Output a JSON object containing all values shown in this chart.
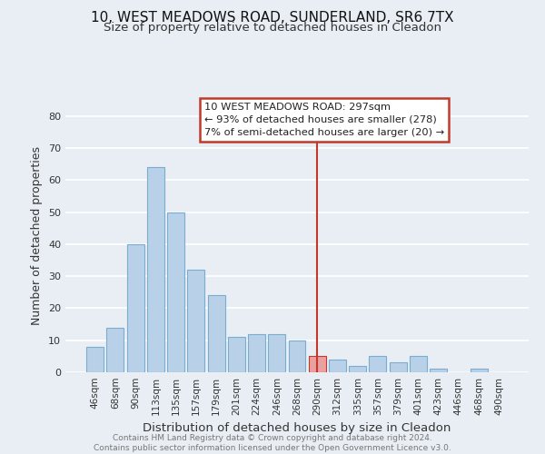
{
  "title": "10, WEST MEADOWS ROAD, SUNDERLAND, SR6 7TX",
  "subtitle": "Size of property relative to detached houses in Cleadon",
  "xlabel": "Distribution of detached houses by size in Cleadon",
  "ylabel": "Number of detached properties",
  "bar_labels": [
    "46sqm",
    "68sqm",
    "90sqm",
    "113sqm",
    "135sqm",
    "157sqm",
    "179sqm",
    "201sqm",
    "224sqm",
    "246sqm",
    "268sqm",
    "290sqm",
    "312sqm",
    "335sqm",
    "357sqm",
    "379sqm",
    "401sqm",
    "423sqm",
    "446sqm",
    "468sqm",
    "490sqm"
  ],
  "bar_values": [
    8,
    14,
    40,
    64,
    50,
    32,
    24,
    11,
    12,
    12,
    10,
    5,
    4,
    2,
    5,
    3,
    5,
    1,
    0,
    1,
    0
  ],
  "highlight_bar_index": 11,
  "bar_color": "#b8d0e8",
  "bar_edge_color": "#7aaed0",
  "highlight_bar_color": "#e8a0a0",
  "highlight_bar_edge_color": "#c0392b",
  "vline_color": "#c0392b",
  "annotation_text": "10 WEST MEADOWS ROAD: 297sqm\n← 93% of detached houses are smaller (278)\n7% of semi-detached houses are larger (20) →",
  "ylim": [
    0,
    85
  ],
  "yticks": [
    0,
    10,
    20,
    30,
    40,
    50,
    60,
    70,
    80
  ],
  "footer_text": "Contains HM Land Registry data © Crown copyright and database right 2024.\nContains public sector information licensed under the Open Government Licence v3.0.",
  "background_color": "#e8eef4",
  "grid_color": "#ffffff",
  "title_fontsize": 11,
  "subtitle_fontsize": 9.5,
  "tick_fontsize": 7.5,
  "ylabel_fontsize": 9,
  "xlabel_fontsize": 9.5,
  "footer_fontsize": 6.5
}
